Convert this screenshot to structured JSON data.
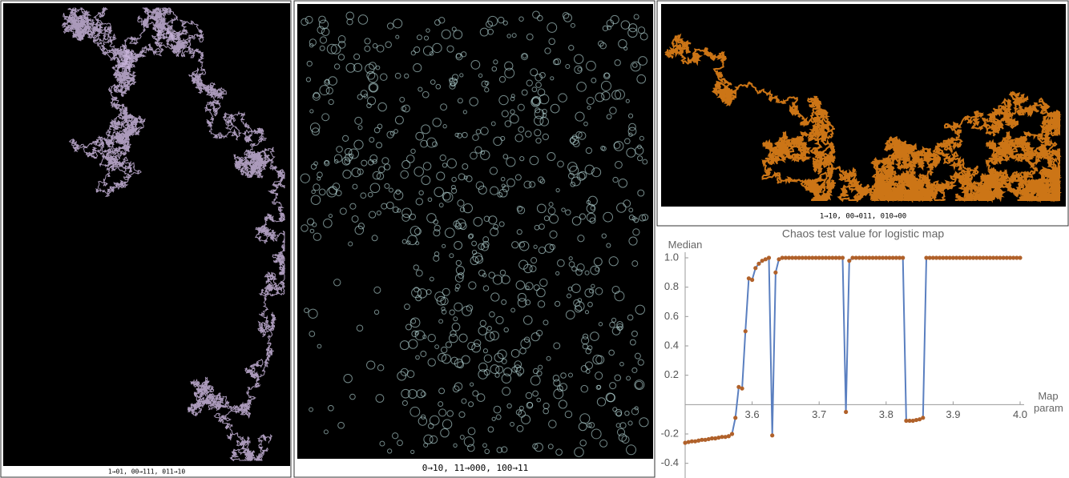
{
  "panels": [
    "1→01, 00→111, 011→10",
    "0→10, 11→000, 100→11",
    "1→10, 00→011, 010→00"
  ],
  "chart_data": {
    "type": "line",
    "title": "Chaos test value for logistic map",
    "xlabel": "Map param",
    "ylabel": "Median",
    "x": [
      3.5,
      3.505,
      3.51,
      3.515,
      3.52,
      3.525,
      3.53,
      3.535,
      3.54,
      3.545,
      3.55,
      3.555,
      3.56,
      3.565,
      3.57,
      3.575,
      3.58,
      3.585,
      3.59,
      3.595,
      3.6,
      3.605,
      3.61,
      3.615,
      3.62,
      3.625,
      3.63,
      3.635,
      3.64,
      3.645,
      3.65,
      3.655,
      3.66,
      3.665,
      3.67,
      3.675,
      3.68,
      3.685,
      3.69,
      3.695,
      3.7,
      3.705,
      3.71,
      3.715,
      3.72,
      3.725,
      3.73,
      3.735,
      3.74,
      3.745,
      3.75,
      3.755,
      3.76,
      3.765,
      3.77,
      3.775,
      3.78,
      3.785,
      3.79,
      3.795,
      3.8,
      3.805,
      3.81,
      3.815,
      3.82,
      3.825,
      3.83,
      3.835,
      3.84,
      3.845,
      3.85,
      3.855,
      3.86,
      3.865,
      3.87,
      3.875,
      3.88,
      3.885,
      3.89,
      3.895,
      3.9,
      3.905,
      3.91,
      3.915,
      3.92,
      3.925,
      3.93,
      3.935,
      3.94,
      3.945,
      3.95,
      3.955,
      3.96,
      3.965,
      3.97,
      3.975,
      3.98,
      3.985,
      3.99,
      3.995,
      4.0
    ],
    "values": [
      -0.26,
      -0.255,
      -0.25,
      -0.25,
      -0.245,
      -0.24,
      -0.24,
      -0.235,
      -0.23,
      -0.23,
      -0.225,
      -0.22,
      -0.22,
      -0.215,
      -0.2,
      -0.09,
      0.12,
      0.11,
      0.5,
      0.86,
      0.85,
      0.93,
      0.96,
      0.98,
      0.99,
      1.0,
      -0.21,
      0.9,
      0.99,
      1,
      1,
      1,
      1,
      1,
      1,
      1,
      1,
      1,
      1,
      1,
      1,
      1,
      1,
      1,
      1,
      1,
      1,
      1,
      -0.05,
      0.98,
      1,
      1,
      1,
      1,
      1,
      1,
      1,
      1,
      1,
      1,
      1,
      1,
      1,
      1,
      1,
      1,
      -0.11,
      -0.11,
      -0.11,
      -0.105,
      -0.1,
      -0.09,
      1,
      1,
      1,
      1,
      1,
      1,
      1,
      1,
      1,
      1,
      1,
      1,
      1,
      1,
      1,
      1,
      1,
      1,
      1,
      1,
      1,
      1,
      1,
      1,
      1,
      1,
      1,
      1,
      1
    ],
    "color": "#5a7fc0",
    "marker_color": "#b0612a",
    "xlim": [
      3.5,
      4.0
    ],
    "ylim": [
      -0.5,
      1.12
    ],
    "xticks": [
      3.6,
      3.7,
      3.8,
      3.9,
      {
        "value": 4,
        "label": "4.0"
      }
    ],
    "yticks": [
      -0.4,
      -0.2,
      0.2,
      0.4,
      0.6,
      0.8,
      {
        "value": 1,
        "label": "1.0"
      }
    ],
    "grid": false
  }
}
